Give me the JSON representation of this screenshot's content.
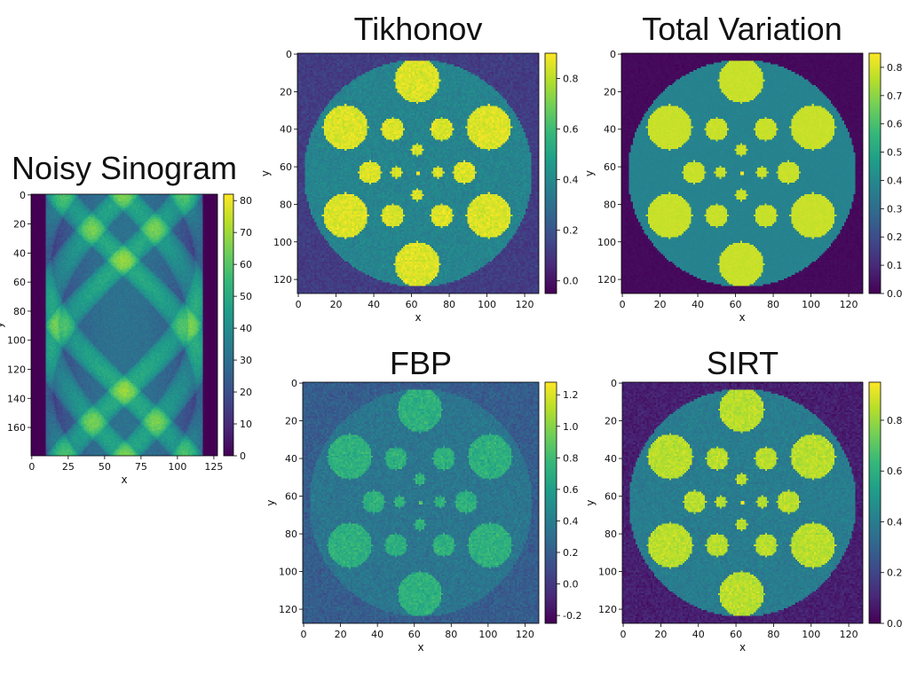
{
  "colors": {
    "viridis": [
      "#440154",
      "#482878",
      "#3e4989",
      "#31688e",
      "#26828e",
      "#1f9e89",
      "#35b779",
      "#6ece58",
      "#b5de2b",
      "#fde725"
    ]
  },
  "chart_data": [
    {
      "type": "heatmap",
      "title": "Noisy Sinogram",
      "xlabel": "x",
      "ylabel": "y",
      "xlim": [
        0,
        127
      ],
      "ylim": [
        0,
        179
      ],
      "xticks": [
        0,
        25,
        50,
        75,
        100,
        125
      ],
      "yticks": [
        0,
        20,
        40,
        60,
        80,
        100,
        120,
        140,
        160
      ],
      "colorbar": {
        "range": [
          0,
          82
        ],
        "ticks": [
          0,
          10,
          20,
          30,
          40,
          50,
          60,
          70,
          80
        ]
      },
      "colormap": "viridis",
      "image": "sinogram"
    },
    {
      "type": "heatmap",
      "title": "Tikhonov",
      "xlabel": "x",
      "ylabel": "y",
      "xlim": [
        0,
        127
      ],
      "ylim": [
        0,
        127
      ],
      "xticks": [
        0,
        20,
        40,
        60,
        80,
        100,
        120
      ],
      "yticks": [
        0,
        20,
        40,
        60,
        80,
        100,
        120
      ],
      "colorbar": {
        "range": [
          -0.05,
          0.9
        ],
        "ticks": [
          0.0,
          0.2,
          0.4,
          0.6,
          0.8
        ]
      },
      "colormap": "viridis",
      "image": "phantom",
      "levels": {
        "background": 0.12,
        "disk": 0.38,
        "features": 0.85,
        "noise": 0.06
      }
    },
    {
      "type": "heatmap",
      "title": "Total Variation",
      "xlabel": "x",
      "ylabel": "y",
      "xlim": [
        0,
        127
      ],
      "ylim": [
        0,
        127
      ],
      "xticks": [
        0,
        20,
        40,
        60,
        80,
        100,
        120
      ],
      "yticks": [
        0,
        20,
        40,
        60,
        80,
        100,
        120
      ],
      "colorbar": {
        "range": [
          0.0,
          0.85
        ],
        "ticks": [
          0.0,
          0.1,
          0.2,
          0.3,
          0.4,
          0.5,
          0.6,
          0.7,
          0.8
        ]
      },
      "colormap": "viridis",
      "image": "phantom",
      "levels": {
        "background": 0.02,
        "disk": 0.38,
        "features": 0.78,
        "noise": 0.015
      }
    },
    {
      "type": "heatmap",
      "title": "FBP",
      "xlabel": "x",
      "ylabel": "y",
      "xlim": [
        0,
        127
      ],
      "ylim": [
        0,
        127
      ],
      "xticks": [
        0,
        20,
        40,
        60,
        80,
        100,
        120
      ],
      "yticks": [
        0,
        20,
        40,
        60,
        80,
        100,
        120
      ],
      "colorbar": {
        "range": [
          -0.25,
          1.28
        ],
        "ticks": [
          -0.2,
          0.0,
          0.2,
          0.4,
          0.6,
          0.8,
          1.0,
          1.2
        ]
      },
      "colormap": "viridis",
      "image": "phantom",
      "levels": {
        "background": 0.2,
        "disk": 0.35,
        "features": 0.72,
        "noise": 0.12
      }
    },
    {
      "type": "heatmap",
      "title": "SIRT",
      "xlabel": "x",
      "ylabel": "y",
      "xlim": [
        0,
        127
      ],
      "ylim": [
        0,
        127
      ],
      "xticks": [
        0,
        20,
        40,
        60,
        80,
        100,
        120
      ],
      "yticks": [
        0,
        20,
        40,
        60,
        80,
        100,
        120
      ],
      "colorbar": {
        "range": [
          0.0,
          0.95
        ],
        "ticks": [
          0.0,
          0.2,
          0.4,
          0.6,
          0.8
        ]
      },
      "colormap": "viridis",
      "image": "phantom",
      "levels": {
        "background": 0.08,
        "disk": 0.4,
        "features": 0.85,
        "noise": 0.06
      }
    }
  ]
}
